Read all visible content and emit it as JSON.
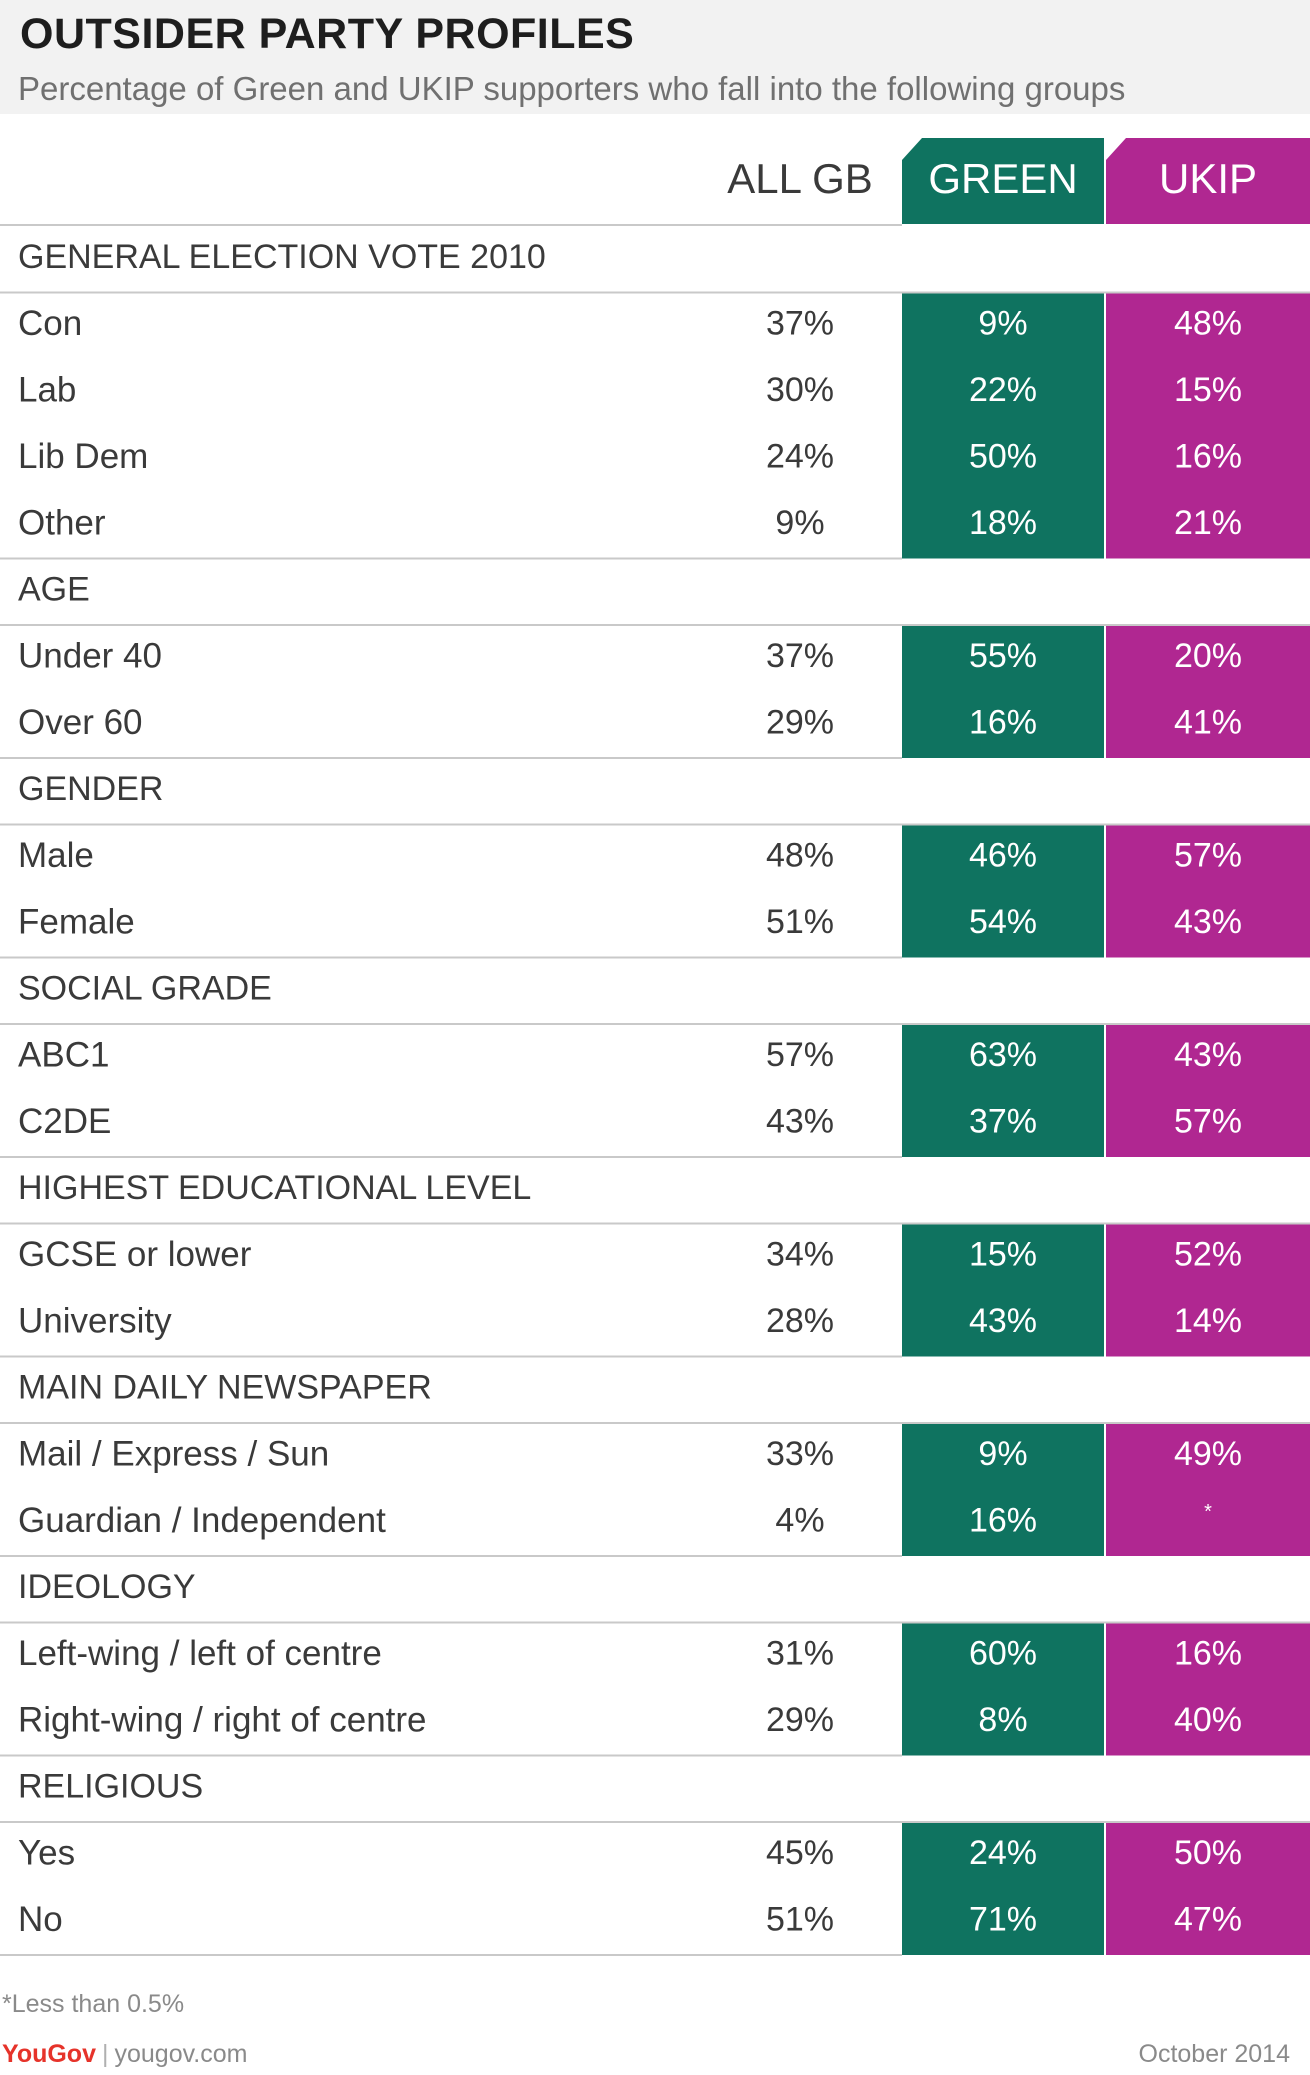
{
  "header": {
    "title": "OUTSIDER PARTY PROFILES",
    "subtitle": "Percentage of Green and UKIP supporters who fall into the following groups"
  },
  "chart_data": {
    "type": "table",
    "columns": [
      "ALL GB",
      "GREEN",
      "UKIP"
    ],
    "column_colors": {
      "GREEN": "#0f7360",
      "UKIP": "#b02791"
    },
    "sections": [
      {
        "heading": "GENERAL ELECTION VOTE 2010",
        "rows": [
          {
            "label": "Con",
            "values": [
              "37%",
              "9%",
              "48%"
            ]
          },
          {
            "label": "Lab",
            "values": [
              "30%",
              "22%",
              "15%"
            ]
          },
          {
            "label": "Lib Dem",
            "values": [
              "24%",
              "50%",
              "16%"
            ]
          },
          {
            "label": "Other",
            "values": [
              "9%",
              "18%",
              "21%"
            ]
          }
        ]
      },
      {
        "heading": "AGE",
        "rows": [
          {
            "label": "Under 40",
            "values": [
              "37%",
              "55%",
              "20%"
            ]
          },
          {
            "label": "Over 60",
            "values": [
              "29%",
              "16%",
              "41%"
            ]
          }
        ]
      },
      {
        "heading": "GENDER",
        "rows": [
          {
            "label": "Male",
            "values": [
              "48%",
              "46%",
              "57%"
            ]
          },
          {
            "label": "Female",
            "values": [
              "51%",
              "54%",
              "43%"
            ]
          }
        ]
      },
      {
        "heading": "SOCIAL GRADE",
        "rows": [
          {
            "label": "ABC1",
            "values": [
              "57%",
              "63%",
              "43%"
            ]
          },
          {
            "label": "C2DE",
            "values": [
              "43%",
              "37%",
              "57%"
            ]
          }
        ]
      },
      {
        "heading": "HIGHEST EDUCATIONAL LEVEL",
        "rows": [
          {
            "label": "GCSE or lower",
            "values": [
              "34%",
              "15%",
              "52%"
            ]
          },
          {
            "label": "University",
            "values": [
              "28%",
              "43%",
              "14%"
            ]
          }
        ]
      },
      {
        "heading": "MAIN DAILY NEWSPAPER",
        "rows": [
          {
            "label": "Mail / Express / Sun",
            "values": [
              "33%",
              "9%",
              "49%"
            ]
          },
          {
            "label": "Guardian / Independent",
            "values": [
              "4%",
              "16%",
              "*"
            ]
          }
        ]
      },
      {
        "heading": "IDEOLOGY",
        "rows": [
          {
            "label": "Left-wing / left of centre",
            "values": [
              "31%",
              "60%",
              "16%"
            ]
          },
          {
            "label": "Right-wing / right of centre",
            "values": [
              "29%",
              "8%",
              "40%"
            ]
          }
        ]
      },
      {
        "heading": "RELIGIOUS",
        "rows": [
          {
            "label": "Yes",
            "values": [
              "45%",
              "24%",
              "50%"
            ]
          },
          {
            "label": "No",
            "values": [
              "51%",
              "71%",
              "47%"
            ]
          }
        ]
      }
    ]
  },
  "footer": {
    "footnote": "*Less than 0.5%",
    "brand_logo": "YouGov",
    "brand_url": "yougov.com",
    "date": "October 2014"
  }
}
